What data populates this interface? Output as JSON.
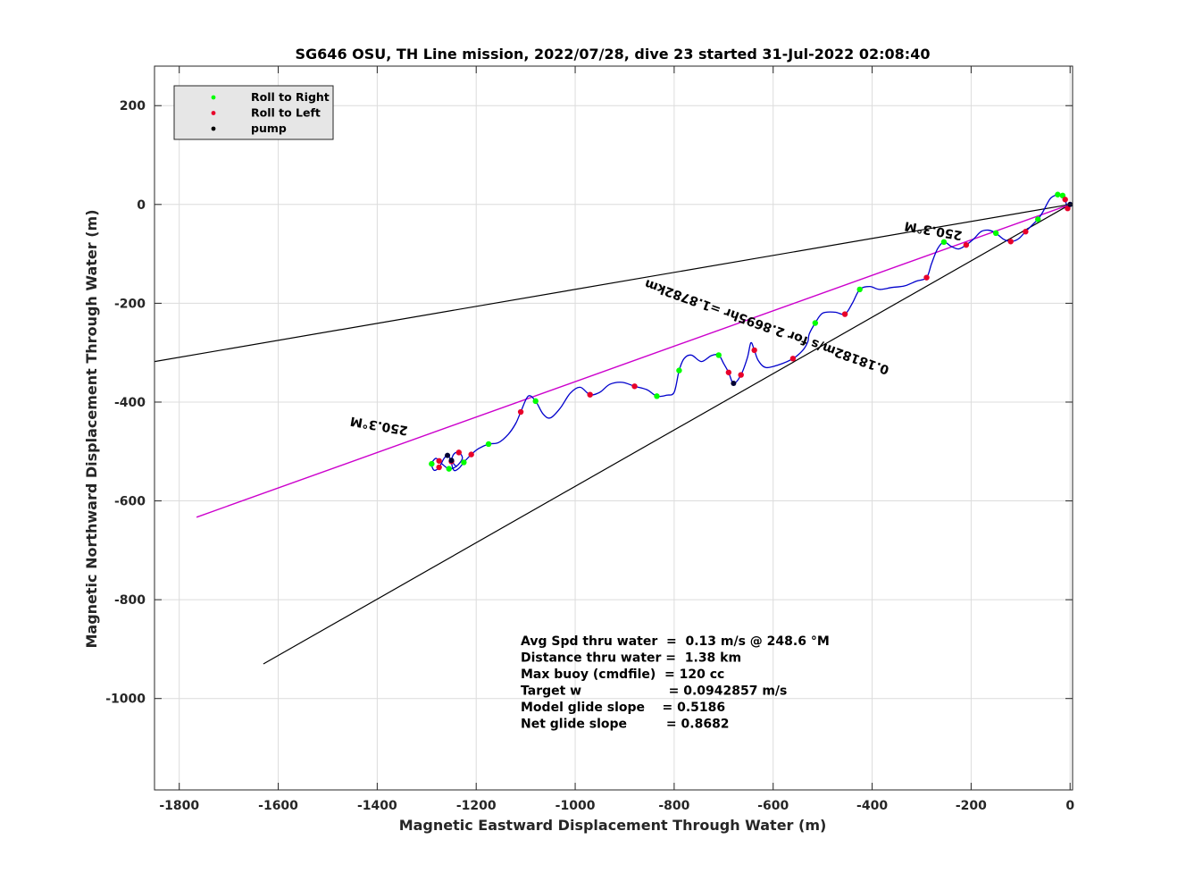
{
  "chart_data": {
    "type": "line",
    "title": "SG646 OSU, TH Line mission, 2022/07/28, dive 23 started 31-Jul-2022 02:08:40",
    "xlabel": "Magnetic Eastward Displacement Through Water (m)",
    "ylabel": "Magnetic Northward Displacement Through Water (m)",
    "xlim": [
      -1850,
      5
    ],
    "ylim": [
      -1185,
      280
    ],
    "xticks": [
      -1800,
      -1600,
      -1400,
      -1200,
      -1000,
      -800,
      -600,
      -400,
      -200,
      0
    ],
    "yticks": [
      200,
      0,
      -200,
      -400,
      -600,
      -800,
      -1000
    ],
    "grid": true,
    "legend": {
      "placement": "top-left",
      "entries": [
        {
          "label": "Roll to Right",
          "color": "#00ff00"
        },
        {
          "label": "Roll to Left",
          "color": "#e8002a"
        },
        {
          "label": "pump",
          "color": "#000000"
        }
      ]
    },
    "colors": {
      "track": "#0000cc",
      "heading_line": "#cc00cc",
      "boundary": "#000000",
      "roll_right": "#00ff00",
      "roll_left": "#e8002a",
      "pump": "#000033"
    },
    "boundary_lines": [
      {
        "x": [
          0,
          -1850
        ],
        "y": [
          0,
          -318
        ]
      },
      {
        "x": [
          0,
          -1630
        ],
        "y": [
          0,
          -930
        ]
      }
    ],
    "heading_line": {
      "x": [
        0,
        -1765
      ],
      "y": [
        0,
        -633
      ]
    },
    "track": {
      "x": [
        0,
        -5,
        -10,
        -15,
        -25,
        -40,
        -55,
        -65,
        -75,
        -90,
        -105,
        -120,
        -135,
        -150,
        -165,
        -180,
        -195,
        -210,
        -225,
        -240,
        -255,
        -268,
        -280,
        -290,
        -310,
        -335,
        -360,
        -385,
        -405,
        -425,
        -440,
        -455,
        -475,
        -500,
        -515,
        -527,
        -530,
        -540,
        -560,
        -590,
        -615,
        -630,
        -638,
        -645,
        -652,
        -665,
        -680,
        -690,
        -700,
        -710,
        -725,
        -745,
        -765,
        -780,
        -790,
        -800,
        -815,
        -835,
        -855,
        -880,
        -905,
        -930,
        -950,
        -970,
        -990,
        -1010,
        -1030,
        -1050,
        -1065,
        -1080,
        -1095,
        -1110,
        -1120,
        -1135,
        -1155,
        -1175,
        -1195,
        -1210,
        -1225,
        -1235,
        -1245,
        -1250,
        -1245,
        -1235,
        -1228,
        -1240,
        -1255,
        -1268,
        -1275,
        -1282,
        -1290,
        -1285,
        -1275,
        -1265,
        -1258,
        -1250,
        -1243,
        -1238
      ],
      "y": [
        0,
        -8,
        10,
        18,
        20,
        12,
        -15,
        -30,
        -40,
        -55,
        -70,
        -75,
        -70,
        -58,
        -52,
        -55,
        -70,
        -82,
        -90,
        -85,
        -76,
        -90,
        -120,
        -148,
        -155,
        -165,
        -168,
        -172,
        -166,
        -172,
        -200,
        -222,
        -218,
        -220,
        -240,
        -262,
        -278,
        -295,
        -312,
        -325,
        -330,
        -316,
        -295,
        -280,
        -310,
        -345,
        -362,
        -340,
        -322,
        -305,
        -306,
        -318,
        -305,
        -312,
        -336,
        -380,
        -386,
        -388,
        -375,
        -368,
        -360,
        -364,
        -380,
        -385,
        -370,
        -382,
        -412,
        -432,
        -424,
        -398,
        -388,
        -420,
        -443,
        -465,
        -482,
        -485,
        -494,
        -506,
        -522,
        -534,
        -538,
        -520,
        -505,
        -502,
        -514,
        -530,
        -535,
        -526,
        -519,
        -514,
        -525,
        -538,
        -532,
        -514,
        -508,
        -518,
        -528,
        -530
      ],
      "roll_right_idx": [
        3,
        4,
        7,
        13,
        20,
        29,
        34,
        49,
        54,
        57,
        69,
        75,
        78,
        86,
        90
      ],
      "roll_left_idx": [
        1,
        2,
        9,
        11,
        17,
        23,
        31,
        38,
        42,
        45,
        47,
        59,
        63,
        71,
        77,
        81,
        83,
        88,
        92
      ],
      "pump_idx": [
        0,
        46,
        94,
        95
      ]
    },
    "annotations": [
      {
        "text": "250.3°M",
        "x": -275,
        "y": -45,
        "angle": 9.75
      },
      {
        "text": "0.18182m/s for 2.8695hr =1.8782km",
        "x": -610,
        "y": -240,
        "angle": 19.7
      },
      {
        "text": "250.3°M",
        "x": -1395,
        "y": -440,
        "angle": 9.75
      }
    ],
    "stats": [
      {
        "label": "Avg Spd thru water  =  0.13 m/s @ 248.6 °M"
      },
      {
        "label": "Distance thru water =  1.38 km"
      },
      {
        "label": "Max buoy (cmdfile)  = 120 cc"
      },
      {
        "label": "Target w                    = 0.0942857 m/s"
      },
      {
        "label": "Model glide slope    = 0.5186"
      },
      {
        "label": "Net glide slope         = 0.8682"
      }
    ]
  }
}
